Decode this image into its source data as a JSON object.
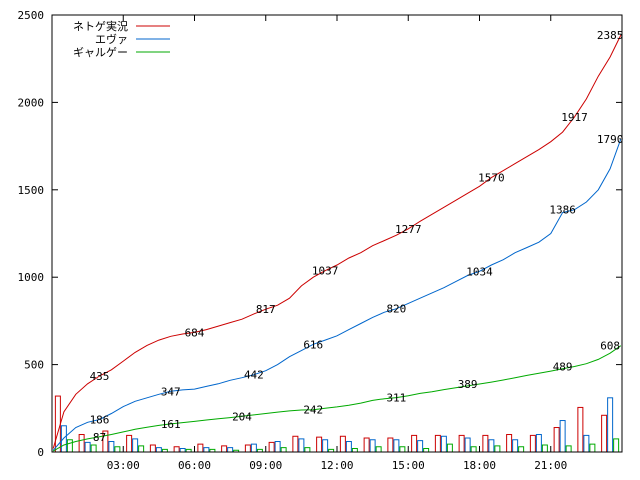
{
  "chart_data": {
    "type": "line",
    "title": "",
    "xlabel": "",
    "ylabel": "",
    "xlim": [
      0,
      24
    ],
    "ylim": [
      0,
      2500
    ],
    "y_ticks": [
      0,
      500,
      1000,
      1500,
      2000,
      2500
    ],
    "x_ticks": [
      {
        "value": 3,
        "label": "03:00"
      },
      {
        "value": 6,
        "label": "06:00"
      },
      {
        "value": 9,
        "label": "09:00"
      },
      {
        "value": 12,
        "label": "12:00"
      },
      {
        "value": 15,
        "label": "15:00"
      },
      {
        "value": 18,
        "label": "18:00"
      },
      {
        "value": 21,
        "label": "21:00"
      }
    ],
    "grid": false,
    "legend_position": "top-left",
    "series": [
      {
        "name": "ネトゲ実況",
        "color": "#cc0000",
        "x": [
          0.05,
          0.5,
          1,
          1.5,
          2,
          2.5,
          3,
          3.5,
          4,
          4.5,
          5,
          5.5,
          6,
          6.5,
          7,
          7.5,
          8,
          8.5,
          9,
          9.5,
          10,
          10.5,
          11,
          11.5,
          12,
          12.5,
          13,
          13.5,
          14,
          14.5,
          15,
          15.5,
          16,
          16.5,
          17,
          17.5,
          18,
          18.5,
          19,
          19.5,
          20,
          20.5,
          21,
          21.5,
          22,
          22.5,
          23,
          23.5,
          23.95
        ],
        "values": [
          20,
          230,
          330,
          390,
          435,
          470,
          520,
          570,
          610,
          640,
          662,
          675,
          684,
          700,
          720,
          740,
          760,
          790,
          817,
          840,
          880,
          950,
          1000,
          1037,
          1070,
          1110,
          1140,
          1180,
          1210,
          1240,
          1277,
          1320,
          1360,
          1400,
          1440,
          1480,
          1520,
          1570,
          1610,
          1650,
          1690,
          1730,
          1775,
          1830,
          1917,
          2020,
          2150,
          2260,
          2385
        ],
        "point_labels": [
          {
            "x": 2,
            "y": 435,
            "text": "435"
          },
          {
            "x": 6,
            "y": 684,
            "text": "684"
          },
          {
            "x": 9,
            "y": 817,
            "text": "817"
          },
          {
            "x": 11.5,
            "y": 1037,
            "text": "1037"
          },
          {
            "x": 15,
            "y": 1277,
            "text": "1277"
          },
          {
            "x": 18.5,
            "y": 1570,
            "text": "1570"
          },
          {
            "x": 22,
            "y": 1917,
            "text": "1917"
          },
          {
            "x": 23.5,
            "y": 2385,
            "text": "2385"
          }
        ]
      },
      {
        "name": "エヴァ",
        "color": "#0066cc",
        "x": [
          0.05,
          0.5,
          1,
          1.5,
          2,
          2.5,
          3,
          3.5,
          4,
          4.5,
          5,
          5.5,
          6,
          6.5,
          7,
          7.5,
          8,
          8.5,
          9,
          9.5,
          10,
          10.5,
          11,
          11.5,
          12,
          12.5,
          13,
          13.5,
          14,
          14.5,
          15,
          15.5,
          16,
          16.5,
          17,
          17.5,
          18,
          18.5,
          19,
          19.5,
          20,
          20.5,
          21,
          21.5,
          22,
          22.5,
          23,
          23.5,
          23.95
        ],
        "values": [
          10,
          80,
          140,
          170,
          186,
          220,
          260,
          290,
          310,
          330,
          347,
          355,
          360,
          375,
          390,
          410,
          425,
          442,
          465,
          500,
          545,
          580,
          616,
          640,
          665,
          700,
          735,
          770,
          800,
          820,
          850,
          880,
          910,
          940,
          975,
          1010,
          1034,
          1070,
          1100,
          1140,
          1170,
          1200,
          1250,
          1370,
          1386,
          1430,
          1500,
          1620,
          1790
        ],
        "point_labels": [
          {
            "x": 2,
            "y": 186,
            "text": "186"
          },
          {
            "x": 5,
            "y": 347,
            "text": "347"
          },
          {
            "x": 8.5,
            "y": 442,
            "text": "442"
          },
          {
            "x": 11,
            "y": 616,
            "text": "616"
          },
          {
            "x": 14.5,
            "y": 820,
            "text": "820"
          },
          {
            "x": 18,
            "y": 1034,
            "text": "1034"
          },
          {
            "x": 21.5,
            "y": 1386,
            "text": "1386"
          },
          {
            "x": 23.5,
            "y": 1790,
            "text": "1790"
          }
        ]
      },
      {
        "name": "ギャルゲー",
        "color": "#00aa00",
        "x": [
          0.05,
          0.5,
          1,
          1.5,
          2,
          2.5,
          3,
          3.5,
          4,
          4.5,
          5,
          5.5,
          6,
          6.5,
          7,
          7.5,
          8,
          8.5,
          9,
          9.5,
          10,
          10.5,
          11,
          11.5,
          12,
          12.5,
          13,
          13.5,
          14,
          14.5,
          15,
          15.5,
          16,
          16.5,
          17,
          17.5,
          18,
          18.5,
          19,
          19.5,
          20,
          20.5,
          21,
          21.5,
          22,
          22.5,
          23,
          23.5,
          23.95
        ],
        "values": [
          5,
          40,
          60,
          75,
          87,
          100,
          115,
          130,
          142,
          152,
          161,
          168,
          175,
          183,
          190,
          197,
          204,
          212,
          220,
          228,
          235,
          240,
          242,
          250,
          258,
          268,
          280,
          295,
          305,
          311,
          322,
          335,
          345,
          357,
          368,
          378,
          389,
          400,
          412,
          425,
          438,
          450,
          463,
          476,
          489,
          505,
          530,
          565,
          608
        ],
        "point_labels": [
          {
            "x": 2,
            "y": 87,
            "text": "87"
          },
          {
            "x": 5,
            "y": 161,
            "text": "161"
          },
          {
            "x": 8,
            "y": 204,
            "text": "204"
          },
          {
            "x": 11,
            "y": 242,
            "text": "242"
          },
          {
            "x": 14.5,
            "y": 311,
            "text": "311"
          },
          {
            "x": 17.5,
            "y": 389,
            "text": "389"
          },
          {
            "x": 21.5,
            "y": 489,
            "text": "489"
          },
          {
            "x": 23.5,
            "y": 608,
            "text": "608"
          }
        ]
      }
    ],
    "bars": {
      "hours": [
        0.5,
        1.5,
        2.5,
        3.5,
        4.5,
        5.5,
        6.5,
        7.5,
        8.5,
        9.5,
        10.5,
        11.5,
        12.5,
        13.5,
        14.5,
        15.5,
        16.5,
        17.5,
        18.5,
        19.5,
        20.5,
        21.5,
        22.5,
        23.5
      ],
      "series": [
        {
          "name": "ネトゲ実況",
          "color": "#cc0000",
          "values": [
            320,
            100,
            120,
            95,
            40,
            30,
            45,
            35,
            40,
            55,
            90,
            85,
            90,
            80,
            80,
            95,
            95,
            95,
            95,
            100,
            95,
            140,
            255,
            210
          ]
        },
        {
          "name": "エヴァ",
          "color": "#0066cc",
          "values": [
            150,
            55,
            60,
            75,
            25,
            20,
            25,
            25,
            45,
            60,
            75,
            70,
            60,
            70,
            70,
            65,
            90,
            80,
            70,
            70,
            100,
            180,
            95,
            310
          ]
        },
        {
          "name": "ギャルゲー",
          "color": "#00aa00",
          "values": [
            70,
            40,
            30,
            35,
            15,
            15,
            15,
            10,
            15,
            25,
            25,
            15,
            20,
            30,
            30,
            20,
            45,
            30,
            35,
            30,
            40,
            35,
            45,
            75
          ]
        }
      ]
    }
  }
}
